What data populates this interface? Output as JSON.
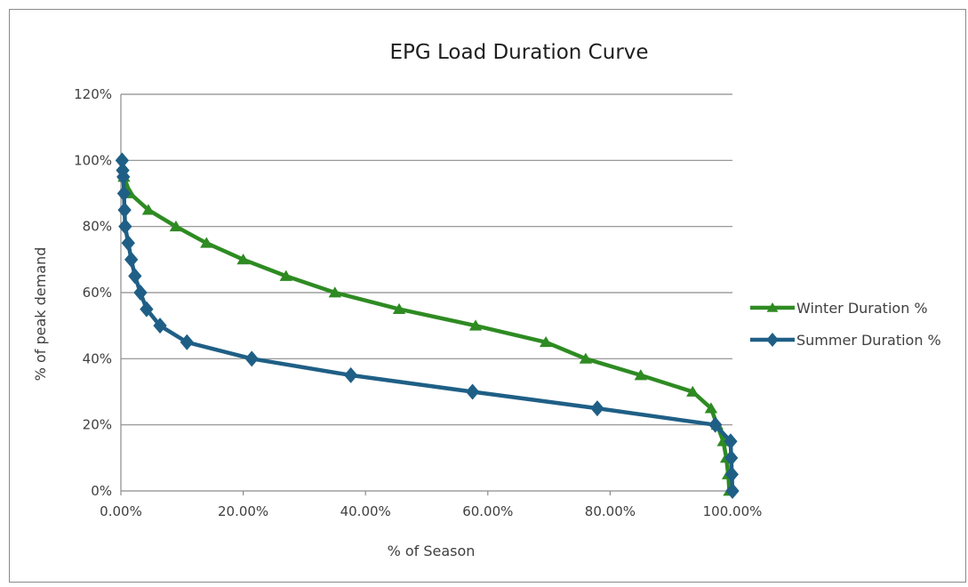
{
  "chart_data": {
    "type": "line",
    "title": "EPG Load Duration Curve",
    "xlabel": "% of Season",
    "ylabel": "% of peak demand",
    "xlim": [
      0,
      100
    ],
    "ylim": [
      0,
      120
    ],
    "xticks": [
      "0.00%",
      "20.00%",
      "40.00%",
      "60.00%",
      "80.00%",
      "100.00%"
    ],
    "yticks": [
      "0%",
      "20%",
      "40%",
      "60%",
      "80%",
      "100%",
      "120%"
    ],
    "grid": "horizontal",
    "legend_position": "right",
    "series": [
      {
        "name": "Winter Duration %",
        "color": "#2e8b22",
        "marker": "triangle",
        "points": [
          {
            "x": 0.5,
            "y": 95
          },
          {
            "x": 1.5,
            "y": 90
          },
          {
            "x": 4.5,
            "y": 85
          },
          {
            "x": 9,
            "y": 80
          },
          {
            "x": 14,
            "y": 75
          },
          {
            "x": 20,
            "y": 70
          },
          {
            "x": 27,
            "y": 65
          },
          {
            "x": 35,
            "y": 60
          },
          {
            "x": 45.5,
            "y": 55
          },
          {
            "x": 58,
            "y": 50
          },
          {
            "x": 69.5,
            "y": 45
          },
          {
            "x": 76,
            "y": 40
          },
          {
            "x": 85,
            "y": 35
          },
          {
            "x": 93.5,
            "y": 30
          },
          {
            "x": 96.5,
            "y": 25
          },
          {
            "x": 97.5,
            "y": 20
          },
          {
            "x": 98.5,
            "y": 15
          },
          {
            "x": 99,
            "y": 10
          },
          {
            "x": 99.3,
            "y": 5
          },
          {
            "x": 99.5,
            "y": 0
          }
        ]
      },
      {
        "name": "Summer Duration %",
        "color": "#1f5f86",
        "marker": "diamond",
        "points": [
          {
            "x": 0.2,
            "y": 100
          },
          {
            "x": 0.3,
            "y": 97
          },
          {
            "x": 0.4,
            "y": 95
          },
          {
            "x": 0.5,
            "y": 90
          },
          {
            "x": 0.6,
            "y": 85
          },
          {
            "x": 0.7,
            "y": 80
          },
          {
            "x": 1.2,
            "y": 75
          },
          {
            "x": 1.7,
            "y": 70
          },
          {
            "x": 2.3,
            "y": 65
          },
          {
            "x": 3.2,
            "y": 60
          },
          {
            "x": 4.2,
            "y": 55
          },
          {
            "x": 6.4,
            "y": 50
          },
          {
            "x": 10.8,
            "y": 45
          },
          {
            "x": 21.4,
            "y": 40
          },
          {
            "x": 37.6,
            "y": 35
          },
          {
            "x": 57.5,
            "y": 30
          },
          {
            "x": 77.9,
            "y": 25
          },
          {
            "x": 97.2,
            "y": 20
          },
          {
            "x": 99.7,
            "y": 15
          },
          {
            "x": 99.8,
            "y": 10
          },
          {
            "x": 99.9,
            "y": 5
          },
          {
            "x": 100,
            "y": 0
          }
        ]
      }
    ]
  }
}
